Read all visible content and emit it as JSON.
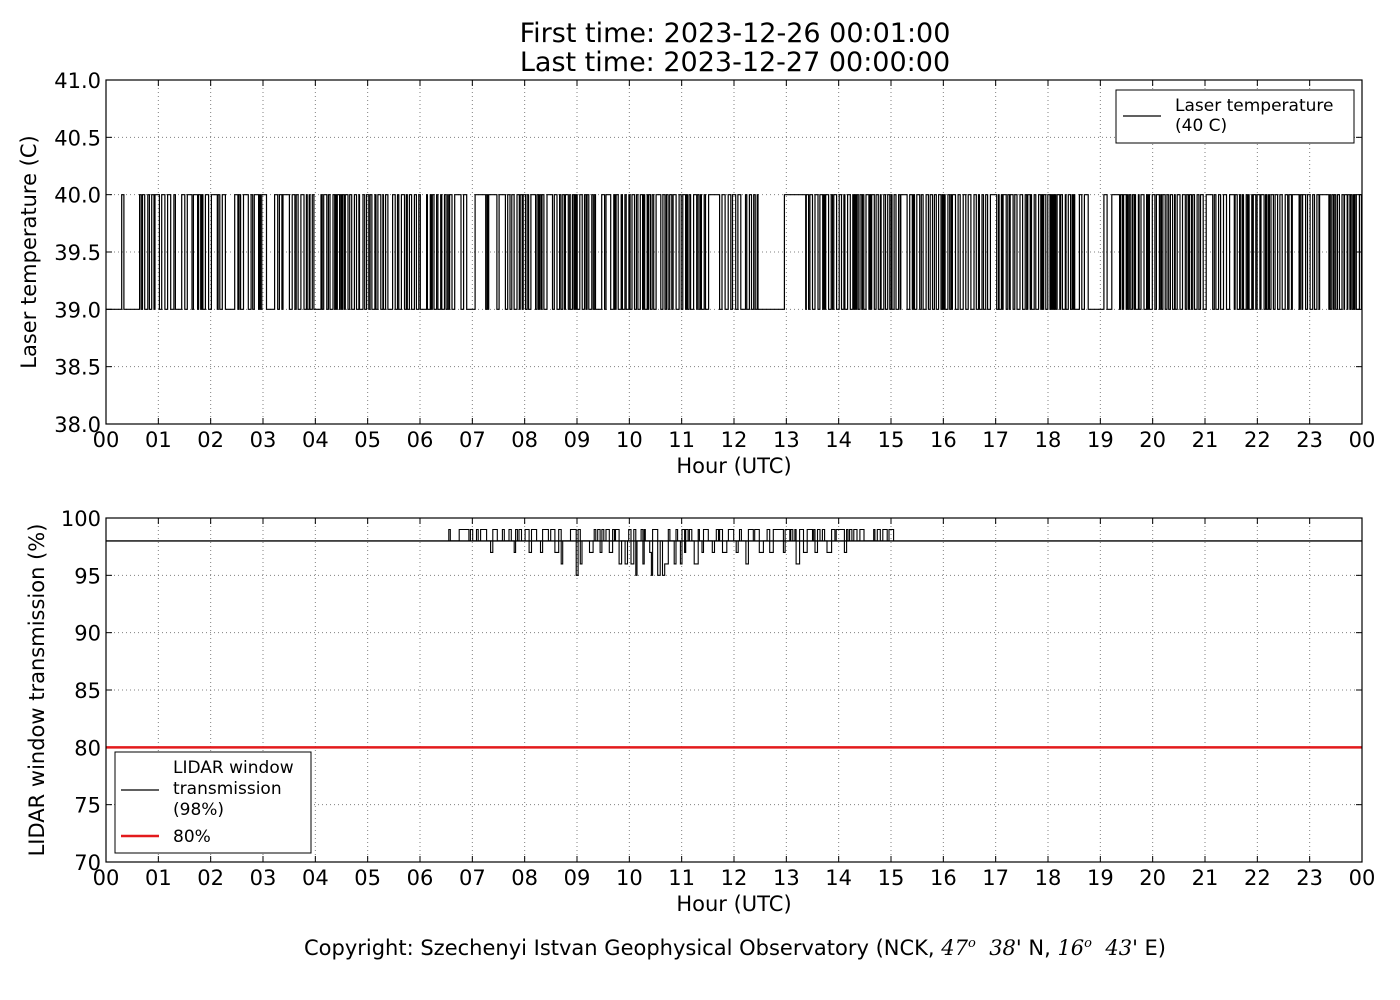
{
  "title": {
    "line1": "First time: 2023-12-26 00:01:00",
    "line2": "Last time: 2023-12-27 00:00:00"
  },
  "footer": {
    "prefix": "Copyright: Szechenyi Istvan Geophysical Observatory (NCK, ",
    "lat_deg": "47",
    "lat_deg_mark": "o",
    "lat_min": "38",
    "lat_suffix": "' N, ",
    "lon_deg": "16",
    "lon_deg_mark": "o",
    "lon_min": "43",
    "lon_suffix": "' E)"
  },
  "colors": {
    "line": "#000000",
    "threshold": "#e31a1c",
    "grid": "#808080"
  },
  "chart_data": [
    {
      "type": "line",
      "xlabel": "Hour (UTC)",
      "ylabel": "Laser temperature (C)",
      "xlim": [
        0,
        24
      ],
      "ylim": [
        38.0,
        41.0
      ],
      "x_ticks": [
        "00",
        "01",
        "02",
        "03",
        "04",
        "05",
        "06",
        "07",
        "08",
        "09",
        "10",
        "11",
        "12",
        "13",
        "14",
        "15",
        "16",
        "17",
        "18",
        "19",
        "20",
        "21",
        "22",
        "23",
        "00"
      ],
      "y_ticks": [
        "38.0",
        "38.5",
        "39.0",
        "39.5",
        "40.0",
        "40.5",
        "41.0"
      ],
      "grid": true,
      "legend_position": "top-right",
      "series": [
        {
          "name": "Laser temperature (40 C)",
          "legend_lines": [
            "Laser temperature",
            "(40 C)"
          ],
          "color": "#000000",
          "pattern": "toggles between 39.0 and 40.0",
          "high_runs": [
            [
              0.27,
              0.3
            ],
            [
              0.62,
              0.66
            ],
            [
              0.78,
              0.82
            ],
            [
              0.95,
              1.0
            ],
            [
              1.05,
              1.12
            ],
            [
              1.15,
              1.22
            ],
            [
              1.28,
              1.32
            ],
            [
              1.42,
              1.48
            ],
            [
              1.55,
              1.62
            ],
            [
              1.7,
              1.75
            ],
            [
              1.9,
              1.95
            ],
            [
              2.05,
              2.12
            ],
            [
              2.2,
              2.28
            ],
            [
              2.45,
              2.5
            ],
            [
              2.6,
              2.7
            ],
            [
              2.85,
              2.9
            ],
            [
              3.0,
              3.05
            ],
            [
              3.4,
              3.48
            ],
            [
              3.72,
              3.78
            ],
            [
              4.15,
              4.2
            ],
            [
              5.95,
              6.0
            ],
            [
              6.65,
              6.78
            ],
            [
              7.07,
              7.25
            ],
            [
              7.32,
              7.45
            ],
            [
              7.5,
              7.62
            ],
            [
              8.1,
              8.2
            ],
            [
              8.45,
              8.52
            ],
            [
              9.25,
              9.3
            ],
            [
              9.55,
              9.62
            ],
            [
              10.1,
              10.15
            ],
            [
              10.5,
              10.58
            ],
            [
              11.48,
              11.7
            ],
            [
              11.95,
              12.02
            ],
            [
              12.35,
              12.4
            ],
            [
              13.0,
              13.05
            ],
            [
              13.1,
              13.3
            ],
            [
              15.2,
              15.3
            ],
            [
              16.9,
              17.0
            ],
            [
              19.12,
              19.22
            ],
            [
              21.05,
              21.12
            ],
            [
              21.45,
              21.55
            ],
            [
              22.7,
              22.78
            ],
            [
              23.2,
              23.35
            ]
          ],
          "dense_intervals": [
            [
              0.0,
              24.0
            ]
          ],
          "low_runs": [
            [
              0.0,
              0.27
            ],
            [
              0.31,
              0.62
            ],
            [
              1.22,
              1.28
            ],
            [
              1.32,
              1.42
            ],
            [
              2.3,
              2.45
            ],
            [
              3.1,
              3.2
            ],
            [
              4.0,
              4.1
            ],
            [
              4.85,
              4.9
            ],
            [
              5.4,
              5.45
            ],
            [
              6.0,
              6.1
            ],
            [
              6.9,
              7.05
            ],
            [
              9.35,
              9.45
            ],
            [
              11.78,
              11.86
            ],
            [
              12.1,
              12.2
            ],
            [
              12.5,
              12.95
            ],
            [
              18.5,
              18.6
            ],
            [
              18.75,
              19.05
            ],
            [
              19.1,
              19.2
            ]
          ],
          "sparse_gaps": [
            [
              18.7,
              19.18
            ],
            [
              13.0,
              13.35
            ],
            [
              19.22,
              19.35
            ]
          ]
        }
      ]
    },
    {
      "type": "line",
      "xlabel": "Hour (UTC)",
      "ylabel": "LIDAR window transmission (%)",
      "xlim": [
        0,
        24
      ],
      "ylim": [
        70,
        100
      ],
      "x_ticks": [
        "00",
        "01",
        "02",
        "03",
        "04",
        "05",
        "06",
        "07",
        "08",
        "09",
        "10",
        "11",
        "12",
        "13",
        "14",
        "15",
        "16",
        "17",
        "18",
        "19",
        "20",
        "21",
        "22",
        "23",
        "00"
      ],
      "y_ticks": [
        "70",
        "75",
        "80",
        "85",
        "90",
        "95",
        "100"
      ],
      "grid": true,
      "legend_position": "lower-left",
      "series": [
        {
          "name": "LIDAR window transmission (98%)",
          "legend_lines": [
            "LIDAR window",
            "transmission",
            "(98%)"
          ],
          "color": "#000000",
          "baseline": 98,
          "active_interval": [
            6.55,
            15.05
          ],
          "spikes_up_to": 99,
          "dips": [
            [
              7.35,
              97
            ],
            [
              7.8,
              97
            ],
            [
              8.1,
              97
            ],
            [
              8.3,
              97
            ],
            [
              8.6,
              97
            ],
            [
              8.7,
              96
            ],
            [
              8.98,
              95
            ],
            [
              9.05,
              96
            ],
            [
              9.25,
              97
            ],
            [
              9.45,
              97
            ],
            [
              9.62,
              97
            ],
            [
              9.82,
              96
            ],
            [
              9.9,
              96
            ],
            [
              10.05,
              96
            ],
            [
              10.12,
              95
            ],
            [
              10.25,
              96
            ],
            [
              10.38,
              97
            ],
            [
              10.4,
              95
            ],
            [
              10.55,
              95
            ],
            [
              10.62,
              95
            ],
            [
              10.7,
              96
            ],
            [
              10.85,
              96
            ],
            [
              10.98,
              96
            ],
            [
              11.05,
              97
            ],
            [
              11.25,
              96
            ],
            [
              11.38,
              97
            ],
            [
              11.6,
              97
            ],
            [
              11.8,
              97
            ],
            [
              12.05,
              97
            ],
            [
              12.25,
              96
            ],
            [
              12.5,
              97
            ],
            [
              12.7,
              97
            ],
            [
              12.95,
              97
            ],
            [
              13.2,
              96
            ],
            [
              13.35,
              97
            ],
            [
              13.55,
              97
            ],
            [
              13.8,
              97
            ],
            [
              14.1,
              97
            ]
          ]
        },
        {
          "name": "80%",
          "legend_lines": [
            "80%"
          ],
          "color": "#e31a1c",
          "constant": 80
        }
      ]
    }
  ]
}
